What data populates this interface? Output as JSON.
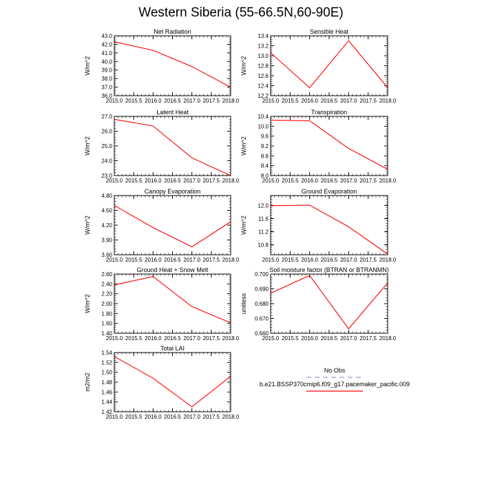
{
  "figure": {
    "title": "Western Siberia (55-66.5N,60-90E)"
  },
  "chart_data": [
    {
      "type": "line",
      "title": "Net Radiation",
      "ylabel": "W/m^2",
      "x": [
        2015.0,
        2016.0,
        2017.0,
        2018.0
      ],
      "xlim": [
        2015.0,
        2018.0
      ],
      "xticks": [
        "2015.0",
        "2015.5",
        "2016.0",
        "2016.5",
        "2017.0",
        "2017.5",
        "2018.0"
      ],
      "ylim": [
        36.0,
        43.0
      ],
      "yticks": [
        "36.0",
        "37.0",
        "38.0",
        "39.0",
        "40.0",
        "41.0",
        "42.0",
        "43.0"
      ],
      "series": [
        {
          "values": [
            42.3,
            41.3,
            39.4,
            37.0
          ],
          "color": "#ff0000"
        }
      ]
    },
    {
      "type": "line",
      "title": "Sensible Heat",
      "ylabel": "W/m^2",
      "x": [
        2015.0,
        2016.0,
        2017.0,
        2018.0
      ],
      "xlim": [
        2015.0,
        2018.0
      ],
      "xticks": [
        "2015.0",
        "2015.5",
        "2016.0",
        "2016.5",
        "2017.0",
        "2017.5",
        "2018.0"
      ],
      "ylim": [
        12.2,
        13.4
      ],
      "yticks": [
        "12.2",
        "12.4",
        "12.6",
        "12.8",
        "13.0",
        "13.2",
        "13.4"
      ],
      "series": [
        {
          "values": [
            13.06,
            12.36,
            13.3,
            12.36
          ],
          "color": "#ff0000"
        }
      ]
    },
    {
      "type": "line",
      "title": "Latent Heat",
      "ylabel": "W/m^2",
      "x": [
        2015.0,
        2016.0,
        2017.0,
        2018.0
      ],
      "xlim": [
        2015.0,
        2018.0
      ],
      "xticks": [
        "2015.0",
        "2015.5",
        "2016.0",
        "2016.5",
        "2017.0",
        "2017.5",
        "2018.0"
      ],
      "ylim": [
        23.0,
        27.0
      ],
      "yticks": [
        "23.0",
        "24.0",
        "25.0",
        "26.0",
        "27.0"
      ],
      "series": [
        {
          "values": [
            26.8,
            26.35,
            24.2,
            23.0
          ],
          "color": "#ff0000"
        }
      ]
    },
    {
      "type": "line",
      "title": "Transpiration",
      "ylabel": "W/m^2",
      "x": [
        2015.0,
        2016.0,
        2017.0,
        2018.0
      ],
      "xlim": [
        2015.0,
        2018.0
      ],
      "xticks": [
        "2015.0",
        "2015.5",
        "2016.0",
        "2016.5",
        "2017.0",
        "2017.5",
        "2018.0"
      ],
      "ylim": [
        8.0,
        10.4
      ],
      "yticks": [
        "8.0",
        "8.4",
        "8.8",
        "9.2",
        "9.6",
        "10.0",
        "10.4"
      ],
      "series": [
        {
          "values": [
            10.25,
            10.22,
            9.1,
            8.25
          ],
          "color": "#ff0000"
        }
      ]
    },
    {
      "type": "line",
      "title": "Canopy Evaporation",
      "ylabel": "W/m^2",
      "x": [
        2015.0,
        2016.0,
        2017.0,
        2018.0
      ],
      "xlim": [
        2015.0,
        2018.0
      ],
      "xticks": [
        "2015.0",
        "2015.5",
        "2016.0",
        "2016.5",
        "2017.0",
        "2017.5",
        "2018.0"
      ],
      "ylim": [
        3.6,
        4.8
      ],
      "yticks": [
        "3.60",
        "3.90",
        "4.20",
        "4.50",
        "4.80"
      ],
      "series": [
        {
          "values": [
            4.6,
            4.15,
            3.76,
            4.27
          ],
          "color": "#ff0000"
        }
      ]
    },
    {
      "type": "line",
      "title": "Ground Evaporation",
      "ylabel": "W/m^2",
      "x": [
        2015.0,
        2016.0,
        2017.0,
        2018.0
      ],
      "xlim": [
        2015.0,
        2018.0
      ],
      "xticks": [
        "2015.0",
        "2015.5",
        "2016.0",
        "2016.5",
        "2017.0",
        "2017.5",
        "2018.0"
      ],
      "ylim": [
        10.5,
        12.3
      ],
      "yticks": [
        "10.8",
        "11.2",
        "11.6",
        "12.0"
      ],
      "series": [
        {
          "values": [
            11.99,
            12.01,
            11.35,
            10.52
          ],
          "color": "#ff0000"
        }
      ]
    },
    {
      "type": "line",
      "title": "Ground Heat + Snow Melt",
      "ylabel": "W/m^2",
      "x": [
        2015.0,
        2016.0,
        2017.0,
        2018.0
      ],
      "xlim": [
        2015.0,
        2018.0
      ],
      "xticks": [
        "2015.0",
        "2015.5",
        "2016.0",
        "2016.5",
        "2017.0",
        "2017.5",
        "2018.0"
      ],
      "ylim": [
        1.4,
        2.6
      ],
      "yticks": [
        "1.40",
        "1.60",
        "1.80",
        "2.00",
        "2.20",
        "2.40",
        "2.60"
      ],
      "series": [
        {
          "values": [
            2.38,
            2.55,
            1.94,
            1.61
          ],
          "color": "#ff0000"
        }
      ]
    },
    {
      "type": "line",
      "title": "Soil moisture factor (BTRAN or BTRANMN)",
      "ylabel": "unitless",
      "x": [
        2015.0,
        2016.0,
        2017.0,
        2018.0
      ],
      "xlim": [
        2015.0,
        2018.0
      ],
      "xticks": [
        "2015.0",
        "2015.5",
        "2016.0",
        "2016.5",
        "2017.0",
        "2017.5",
        "2018.0"
      ],
      "ylim": [
        0.66,
        0.7
      ],
      "yticks": [
        "0.660",
        "0.670",
        "0.680",
        "0.690",
        "0.700"
      ],
      "series": [
        {
          "values": [
            0.687,
            0.699,
            0.663,
            0.694
          ],
          "color": "#ff0000"
        }
      ]
    },
    {
      "type": "line",
      "title": "Total LAI",
      "ylabel": "m2/m2",
      "x": [
        2015.0,
        2016.0,
        2017.0,
        2018.0
      ],
      "xlim": [
        2015.0,
        2018.0
      ],
      "xticks": [
        "2015.0",
        "2015.5",
        "2016.0",
        "2016.5",
        "2017.0",
        "2017.5",
        "2018.0"
      ],
      "ylim": [
        1.42,
        1.54
      ],
      "yticks": [
        "1.42",
        "1.44",
        "1.46",
        "1.48",
        "1.50",
        "1.52",
        "1.54"
      ],
      "series": [
        {
          "values": [
            1.532,
            1.488,
            1.43,
            1.492
          ],
          "color": "#ff0000"
        }
      ]
    }
  ],
  "legend": {
    "items": [
      {
        "label": "No Obs",
        "color": "#a8a8d8",
        "style": "dashed"
      },
      {
        "label": "b.e21.BSSP370cmip6.f09_g17.pacemaker_pacific.009",
        "color": "#ff0000",
        "style": "solid"
      }
    ]
  }
}
